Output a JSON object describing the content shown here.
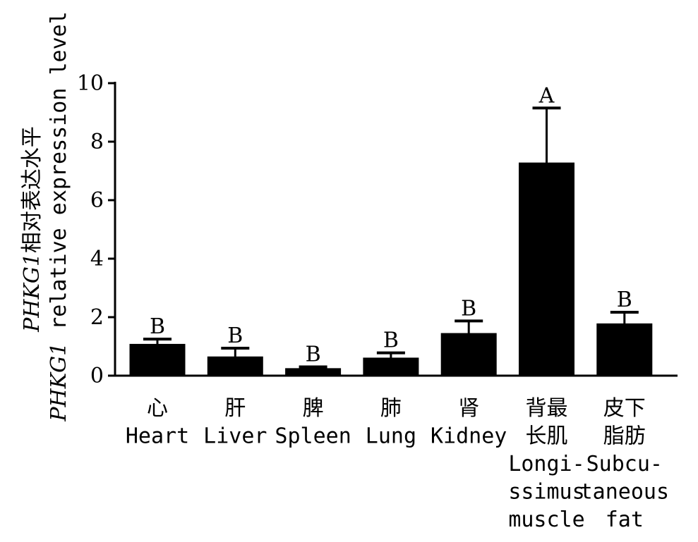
{
  "chart_data": {
    "type": "bar",
    "gene": "PHKG1",
    "ylabel_line1_suffix": "相对表达水平",
    "ylabel_line2_suffix": " relative expression level",
    "ylim": [
      0,
      10
    ],
    "yticks": [
      0,
      2,
      4,
      6,
      8,
      10
    ],
    "categories": [
      {
        "zh": [
          "心"
        ],
        "en": [
          "Heart"
        ]
      },
      {
        "zh": [
          "肝"
        ],
        "en": [
          "Liver"
        ]
      },
      {
        "zh": [
          "脾"
        ],
        "en": [
          "Spleen"
        ]
      },
      {
        "zh": [
          "肺"
        ],
        "en": [
          "Lung"
        ]
      },
      {
        "zh": [
          "肾"
        ],
        "en": [
          "Kidney"
        ]
      },
      {
        "zh": [
          "背最",
          "长肌"
        ],
        "en": [
          "Longi-",
          "ssimus",
          "muscle"
        ]
      },
      {
        "zh": [
          "皮下",
          "脂肪"
        ],
        "en": [
          "Subcu-",
          "taneous",
          "fat"
        ]
      }
    ],
    "values": [
      1.05,
      0.62,
      0.22,
      0.58,
      1.42,
      7.25,
      1.75
    ],
    "errors": [
      0.2,
      0.32,
      0.08,
      0.2,
      0.45,
      1.9,
      0.42
    ],
    "significance": [
      "B",
      "B",
      "B",
      "B",
      "B",
      "A",
      "B"
    ],
    "colors": {
      "bar": "#000000",
      "axis": "#000000"
    }
  }
}
